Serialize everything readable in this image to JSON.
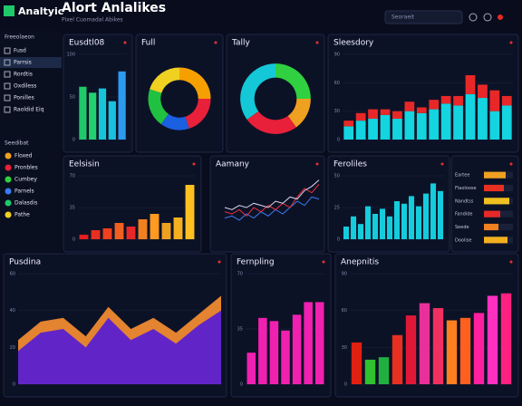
{
  "header": {
    "logo": "Analtyic",
    "title": "Alort Anlalikes",
    "subtitle": "Pixel Cuomadal Abikes",
    "search": "Seoraeit"
  },
  "sidebar": {
    "section1": "Freeolaeon",
    "items1": [
      "Fusd",
      "Parrsis",
      "Rordtis",
      "Oxdiless",
      "Ponilles",
      "Raoldid Eiq"
    ],
    "section2": "Seedibat",
    "items2": [
      "Floxed",
      "Pronbles",
      "Cumbey",
      "Parnels",
      "Dalasdis",
      "Pathe"
    ]
  },
  "chart_data": [
    {
      "type": "bar",
      "title": "Eusdtl08",
      "values": [
        62,
        55,
        60,
        45,
        80
      ],
      "colors": [
        "#1fc96a",
        "#22d070",
        "#17c4d8",
        "#1ac0e0",
        "#2b9bf0"
      ],
      "ylim": [
        0,
        100
      ],
      "yticks": [
        0,
        50,
        100
      ]
    },
    {
      "type": "pie",
      "title": "Full",
      "values": [
        25,
        20,
        15,
        20,
        20
      ],
      "colors": [
        "#f5a000",
        "#e8203a",
        "#1a60e0",
        "#20c040",
        "#f0d020"
      ]
    },
    {
      "type": "pie",
      "title": "Tally",
      "values": [
        25,
        15,
        25,
        35
      ],
      "colors": [
        "#30d040",
        "#f0a020",
        "#e8203a",
        "#14c8d8"
      ]
    },
    {
      "type": "stacked",
      "title": "Sleesdory",
      "ylim": [
        0,
        90
      ],
      "yticks": [
        0,
        30,
        60,
        90
      ],
      "series": [
        {
          "name": "Cyan",
          "color": "#14d4e0",
          "values": [
            14,
            20,
            22,
            26,
            22,
            30,
            28,
            32,
            38,
            36,
            48,
            44,
            30,
            36
          ]
        },
        {
          "name": "Red",
          "color": "#e82828",
          "values": [
            6,
            8,
            10,
            6,
            8,
            10,
            6,
            10,
            8,
            10,
            20,
            14,
            22,
            10
          ]
        }
      ]
    },
    {
      "type": "bar",
      "title": "Eelsisin",
      "values": [
        5,
        10,
        12,
        18,
        14,
        22,
        28,
        18,
        24,
        60
      ],
      "colors": [
        "#e02020",
        "#e83020",
        "#f04020",
        "#f06020",
        "#e82828",
        "#f08020",
        "#ff9a20",
        "#f0a020",
        "#f5b020",
        "#ffc020"
      ],
      "ylim": [
        0,
        70
      ],
      "yticks": [
        0,
        35,
        70
      ]
    },
    {
      "type": "line",
      "title": "Aamany",
      "ylim": [
        0,
        60
      ],
      "series": [
        {
          "name": "Blue",
          "color": "#3a7cf0",
          "values": [
            20,
            22,
            18,
            24,
            20,
            26,
            22,
            28,
            24,
            30,
            36,
            32,
            40,
            38
          ]
        },
        {
          "name": "Red",
          "color": "#f03040",
          "values": [
            26,
            24,
            28,
            22,
            30,
            26,
            32,
            28,
            34,
            30,
            40,
            48,
            44,
            52
          ]
        },
        {
          "name": "White",
          "color": "#d8d8f0",
          "values": [
            30,
            28,
            32,
            30,
            34,
            32,
            30,
            36,
            34,
            40,
            38,
            46,
            50,
            56
          ]
        }
      ]
    },
    {
      "type": "bar",
      "title": "Feroliles",
      "values": [
        10,
        18,
        12,
        26,
        20,
        24,
        18,
        30,
        28,
        34,
        26,
        36,
        44,
        38
      ],
      "color": "#14ccdc",
      "ylim": [
        0,
        50
      ],
      "yticks": [
        0,
        25,
        50
      ]
    },
    {
      "type": "hbar",
      "categories": [
        "Eartee",
        "Flaoloose",
        "Nandtss",
        "Fandide",
        "Seede",
        "Doolise"
      ],
      "values": [
        60,
        55,
        70,
        45,
        40,
        65
      ],
      "colors": [
        "#f0a020",
        "#e83020",
        "#f0c020",
        "#e82828",
        "#f08020",
        "#f0b020"
      ],
      "xlim": [
        0,
        80
      ]
    },
    {
      "type": "area",
      "title": "Pusdina",
      "ylim": [
        0,
        60
      ],
      "yticks": [
        0,
        20,
        40,
        60
      ],
      "series": [
        {
          "name": "Orange",
          "color": "#f08a30",
          "values": [
            24,
            34,
            36,
            26,
            42,
            30,
            36,
            28,
            38,
            48
          ]
        },
        {
          "name": "Purple",
          "color": "#5a20d0",
          "values": [
            18,
            28,
            30,
            20,
            36,
            24,
            30,
            22,
            32,
            40
          ]
        }
      ]
    },
    {
      "type": "bar",
      "title": "Fernpling",
      "values": [
        20,
        42,
        40,
        34,
        44,
        52,
        52
      ],
      "color": "#f020b0",
      "ylim": [
        0,
        70
      ],
      "yticks": [
        0,
        35,
        70
      ]
    },
    {
      "type": "bar",
      "title": "Anepnitis",
      "values": [
        34,
        20,
        22,
        40,
        56,
        66,
        62,
        52,
        54,
        58,
        72,
        74
      ],
      "colors": [
        "#e02010",
        "#30c030",
        "#20b040",
        "#e83020",
        "#e01838",
        "#e8309a",
        "#f03060",
        "#ff8020",
        "#ff6020",
        "#ff20a0",
        "#ff30c0",
        "#ff2080"
      ],
      "ylim": [
        0,
        90
      ],
      "yticks": [
        0,
        30,
        60,
        90
      ]
    }
  ]
}
